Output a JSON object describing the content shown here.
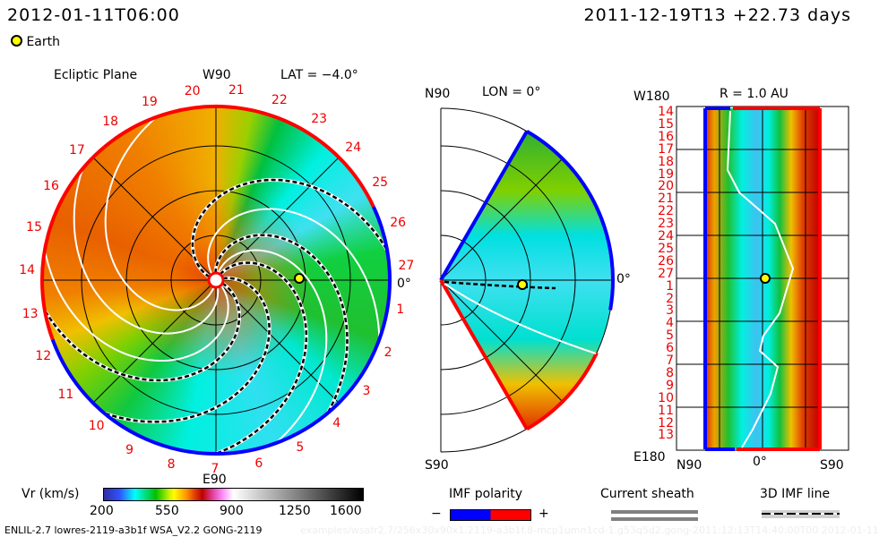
{
  "header": {
    "model_time": "2012-01-11T06:00",
    "run_info": "2011-12-19T13 +22.73 days",
    "legend_earth": "Earth"
  },
  "ecliptic": {
    "title": "Ecliptic Plane",
    "top_label": "W90",
    "lat_label": "LAT = −4.0°",
    "bottom_label": "E90",
    "right_label": "0°",
    "carrington_labels": [
      "1",
      "2",
      "3",
      "4",
      "5",
      "6",
      "7",
      "8",
      "9",
      "10",
      "11",
      "12",
      "13",
      "14",
      "15",
      "16",
      "17",
      "18",
      "19",
      "20",
      "21",
      "22",
      "23",
      "24",
      "25",
      "26",
      "27"
    ]
  },
  "meridional": {
    "top_label": "N90",
    "lon_label": "LON = 0°",
    "bottom_label": "S90",
    "right_label": "0°"
  },
  "shell": {
    "title": "R = 1.0 AU",
    "top_label": "W180",
    "bottom_label": "E180",
    "x_labels": [
      "N90",
      "0°",
      "S90"
    ],
    "y_labels": [
      "14",
      "15",
      "16",
      "17",
      "18",
      "19",
      "20",
      "21",
      "22",
      "23",
      "24",
      "25",
      "26",
      "27",
      "1",
      "2",
      "3",
      "4",
      "5",
      "6",
      "7",
      "8",
      "9",
      "10",
      "11",
      "12",
      "13"
    ]
  },
  "colorbar": {
    "label": "Vr (km/s)",
    "ticks": [
      "200",
      "550",
      "900",
      "1250",
      "1600"
    ]
  },
  "legend": {
    "imf_polarity": "IMF polarity",
    "minus": "−",
    "plus": "+",
    "current_sheath": "Current sheath",
    "imf_line": "3D IMF line",
    "polarity_colors": {
      "negative": "#0000ff",
      "positive": "#ff0000"
    }
  },
  "footer": {
    "left": "ENLIL-2.7 lowres-2119-a3b1f WSA_V2.2 GONG-2119",
    "faint": "examples/wsafr2.7/256x30x90x1.2119-a3b1f.8-mcp1umn1cd-1.g53q5d2.gong-2011:12:13T14:40:00T00    2012-01-11"
  }
}
